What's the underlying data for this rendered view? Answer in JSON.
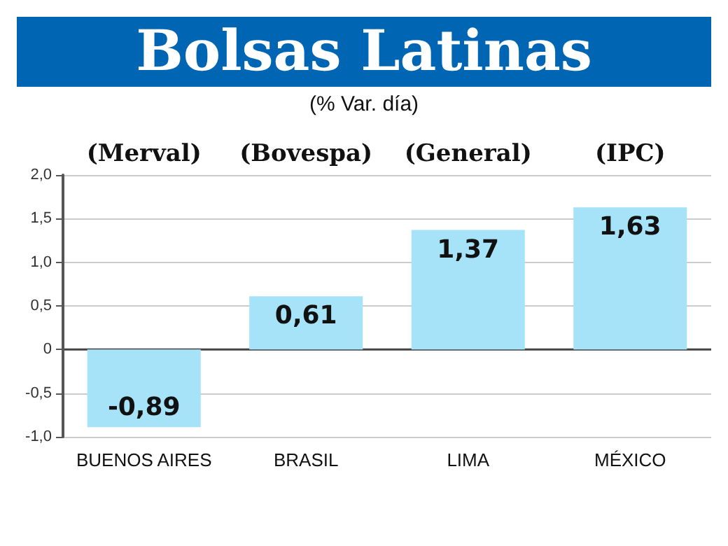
{
  "chart_data": {
    "type": "bar",
    "title": "Bolsas Latinas",
    "subtitle": "(% Var. día)",
    "categories": [
      "BUENOS AIRES",
      "BRASIL",
      "LIMA",
      "MÉXICO"
    ],
    "values": [
      -0.89,
      0.61,
      1.37,
      1.63
    ],
    "value_labels": [
      "-0,89",
      "0,61",
      "1,37",
      "1,63"
    ],
    "color": "#a6e3f9",
    "annotations": [
      "(Merval)",
      "(Bovespa)",
      "(General)",
      "(IPC)"
    ],
    "ylim": [
      -1.0,
      2.0
    ],
    "yticks": [
      {
        "value": -1.0,
        "label": "-1,0"
      },
      {
        "value": -0.5,
        "label": "-0,5"
      },
      {
        "value": 0,
        "label": "0"
      },
      {
        "value": 0.5,
        "label": "0,5"
      },
      {
        "value": 1.0,
        "label": "1,0"
      },
      {
        "value": 1.5,
        "label": "1,5"
      },
      {
        "value": 2.0,
        "label": "2,0"
      }
    ],
    "grid": "y"
  }
}
